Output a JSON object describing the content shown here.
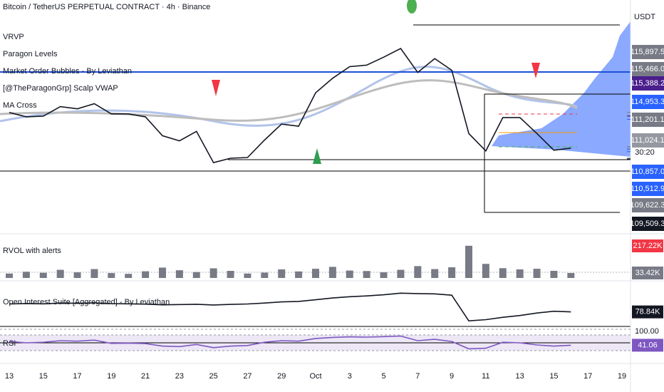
{
  "header": {
    "title": "Bitcoin / TetherUS PERPETUAL CONTRACT · 4h · Binance",
    "currency": "USDT",
    "indicators": [
      "VRVP",
      "Paragon Levels",
      "Market Order Bubbles - By Leviathan",
      "[@TheParagonGrp] Scalp VWAP",
      "MA Cross"
    ]
  },
  "chart_data": [
    {
      "type": "line",
      "color": "#131722",
      "categories": [
        "13",
        null,
        "15",
        null,
        "17",
        null,
        "19",
        null,
        "21",
        null,
        "23",
        null,
        "25",
        null,
        "27",
        null,
        "29",
        null,
        "Oct",
        null,
        "3",
        null,
        "5",
        null,
        "7",
        null,
        "9",
        null,
        "11",
        null,
        "13",
        null,
        "15",
        null,
        "17",
        null,
        "19"
      ],
      "values": [
        115900,
        115300,
        115400,
        116700,
        116400,
        117100,
        115700,
        115700,
        115300,
        112700,
        112000,
        113300,
        109000,
        109600,
        109700,
        112100,
        114300,
        114000,
        118600,
        120600,
        122200,
        122400,
        123500,
        124700,
        121400,
        123300,
        121700,
        113000,
        110600,
        115200,
        115200,
        113000,
        110700,
        111000,
        null,
        null,
        null
      ],
      "ylim": [
        100000,
        129400
      ],
      "price_labels": [
        {
          "value": 115897.5,
          "label": "115,897.5",
          "color": "#787b86"
        },
        {
          "value": 115466.0,
          "label": "115,466.0",
          "color": "#787b86"
        },
        {
          "value": 115388.2,
          "label": "115,388.2",
          "color": "#4a1e8c"
        },
        {
          "value": 114953.3,
          "label": "114,953.3",
          "color": "#2962ff"
        },
        {
          "value": 111201.1,
          "label": "111,201.1",
          "color": "#787b86"
        },
        {
          "value": 111024.1,
          "label": "111,024.1",
          "color": "#9598a1"
        },
        {
          "value": 110857.0,
          "label": "110,857.0",
          "color": "#2962ff"
        },
        {
          "value": 110512.9,
          "label": "110,512.9",
          "color": "#2962ff"
        },
        {
          "value": 109622.3,
          "label": "109,622.3",
          "color": "#787b86"
        },
        {
          "value": 109509.3,
          "label": "109,509.3",
          "color": "#131722"
        }
      ],
      "countdown": "30:20"
    },
    {
      "type": "bar",
      "title": "RVOL with alerts",
      "color": "#787b86",
      "values": [
        30,
        42,
        35,
        55,
        38,
        60,
        33,
        28,
        45,
        70,
        52,
        40,
        65,
        48,
        30,
        36,
        58,
        44,
        62,
        75,
        50,
        47,
        38,
        55,
        80,
        60,
        72,
        217.22,
        95,
        66,
        58,
        62,
        48,
        33.42,
        null,
        null,
        null
      ],
      "ylim": [
        0,
        250
      ],
      "last_labels": [
        {
          "value": 217.22,
          "label": "217.22K",
          "color": "#f23645"
        },
        {
          "value": 33.42,
          "label": "33.42K",
          "color": "#787b86"
        }
      ]
    },
    {
      "type": "line",
      "title": "Open Interest Suite [Aggregated] - By Leviathan",
      "color": "#131722",
      "values": [
        84.2,
        84.5,
        84.3,
        84.8,
        84.6,
        84.9,
        84.4,
        84.3,
        84.1,
        83.6,
        83.8,
        84.0,
        83.5,
        83.9,
        84.2,
        84.8,
        85.6,
        85.9,
        87.0,
        88.2,
        89.1,
        89.6,
        90.4,
        91.5,
        91.2,
        91.0,
        90.1,
        72.8,
        73.6,
        75.2,
        76.4,
        78.1,
        79.3,
        78.84,
        null,
        null,
        null
      ],
      "ylim": [
        70,
        95
      ],
      "last_labels": [
        {
          "value": 78.84,
          "label": "78.84K",
          "color": "#131722"
        }
      ]
    },
    {
      "type": "line",
      "title": "RSI",
      "color": "#7e57c2",
      "values": [
        55,
        50,
        52,
        58,
        56,
        60,
        48,
        49,
        47,
        38,
        36,
        44,
        32,
        38,
        40,
        52,
        58,
        56,
        66,
        70,
        72,
        71,
        73,
        75,
        58,
        63,
        55,
        28,
        30,
        52,
        50,
        42,
        38,
        41.06,
        null,
        null,
        null
      ],
      "ylim": [
        0,
        100
      ],
      "yticks": [
        {
          "value": 100,
          "label": "100.00"
        }
      ],
      "last_labels": [
        {
          "value": 41.06,
          "label": "41.06",
          "color": "#7e57c2"
        }
      ]
    }
  ]
}
